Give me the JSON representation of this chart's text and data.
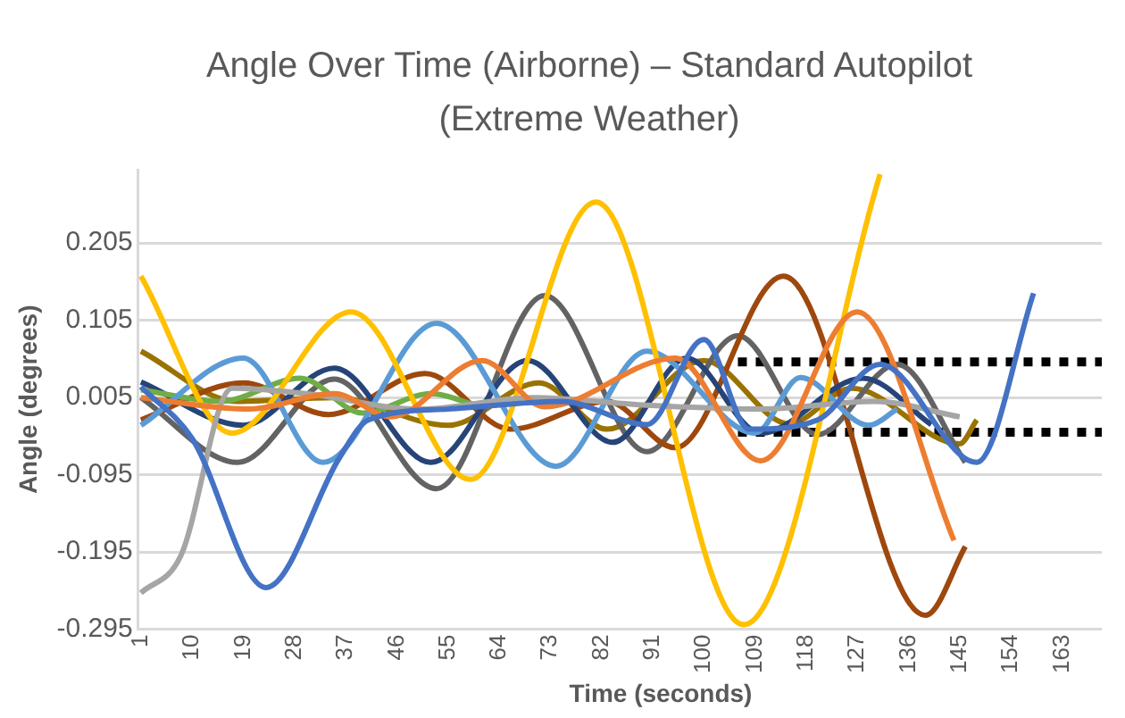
{
  "chart_data": {
    "type": "line",
    "title": "Angle Over Time (Airborne) – Standard Autopilot (Extreme Weather)",
    "xlabel": "Time (seconds)",
    "ylabel": "Angle (degrees)",
    "xlim": [
      0.5,
      170
    ],
    "xticks": [
      1,
      10,
      19,
      28,
      37,
      46,
      55,
      64,
      73,
      82,
      91,
      100,
      109,
      118,
      127,
      136,
      145,
      154,
      163
    ],
    "ylim": [
      -0.295,
      0.3
    ],
    "yticks": [
      -0.295,
      -0.195,
      -0.095,
      0.005,
      0.105,
      0.205
    ],
    "grid": "y",
    "legend": false,
    "marker": "none",
    "line_style": "solid",
    "series": [
      {
        "color": "#4472c4",
        "x": [
          1,
          10,
          23,
          36,
          41,
          55,
          75,
          90,
          100,
          108,
          120,
          131,
          148,
          158
        ],
        "values": [
          0.019,
          -0.048,
          -0.241,
          -0.072,
          -0.024,
          -0.01,
          0.0,
          -0.03,
          0.08,
          -0.036,
          -0.024,
          0.048,
          -0.079,
          0.14
        ]
      },
      {
        "color": "#ed7d31",
        "x": [
          1,
          20,
          35,
          45,
          61,
          72,
          95,
          110,
          127,
          144
        ],
        "values": [
          0.005,
          -0.01,
          0.01,
          -0.02,
          0.053,
          -0.007,
          0.056,
          -0.077,
          0.116,
          -0.18
        ]
      },
      {
        "color": "#a5a5a5",
        "x": [
          1,
          8,
          17,
          30,
          50,
          70,
          90,
          110,
          130,
          145
        ],
        "values": [
          -0.248,
          -0.2,
          0.017,
          0.01,
          -0.01,
          0.005,
          -0.005,
          -0.01,
          0.0,
          -0.02
        ]
      },
      {
        "color": "#ffc000",
        "x": [
          1,
          17,
          38,
          59,
          81,
          107,
          131
        ],
        "values": [
          0.162,
          -0.041,
          0.116,
          -0.101,
          0.258,
          -0.289,
          0.294
        ]
      },
      {
        "color": "#5b9bd5",
        "x": [
          1,
          19,
          33,
          53,
          74,
          90,
          109,
          117,
          129,
          134
        ],
        "values": [
          -0.031,
          0.056,
          -0.079,
          0.101,
          -0.084,
          0.065,
          -0.041,
          0.031,
          -0.031,
          -0.01
        ]
      },
      {
        "color": "#70ad47",
        "x": [
          1,
          15,
          29,
          40,
          52,
          60
        ],
        "values": [
          0.015,
          0.0,
          0.03,
          -0.015,
          0.01,
          -0.005
        ]
      },
      {
        "color": "#264478",
        "x": [
          1,
          19,
          35,
          52,
          69,
          84,
          97,
          110,
          128,
          140
        ],
        "values": [
          0.025,
          -0.031,
          0.043,
          -0.079,
          0.053,
          -0.053,
          0.056,
          -0.041,
          0.03,
          -0.03
        ]
      },
      {
        "color": "#9e480e",
        "x": [
          1,
          19,
          34,
          51,
          66,
          83,
          95,
          114,
          139,
          146
        ],
        "values": [
          -0.024,
          0.024,
          -0.017,
          0.036,
          -0.036,
          0.0,
          -0.06,
          0.162,
          -0.277,
          -0.188
        ]
      },
      {
        "color": "#636363",
        "x": [
          1,
          18,
          35,
          53,
          72,
          90,
          106,
          120,
          134,
          146
        ],
        "values": [
          0.005,
          -0.079,
          0.029,
          -0.113,
          0.137,
          -0.065,
          0.085,
          -0.043,
          0.048,
          -0.079
        ]
      },
      {
        "color": "#997300",
        "x": [
          1,
          18,
          35,
          55,
          71,
          83,
          100,
          115,
          126,
          145,
          148
        ],
        "values": [
          0.065,
          0.0,
          0.005,
          -0.031,
          0.024,
          -0.036,
          0.053,
          -0.029,
          0.017,
          -0.055,
          -0.024
        ]
      },
      {
        "color": "#000000",
        "line_style": "dotted",
        "x": [
          106,
          170
        ],
        "values": [
          0.051,
          0.051
        ]
      },
      {
        "color": "#000000",
        "line_style": "dotted",
        "x": [
          106,
          170
        ],
        "values": [
          -0.04,
          -0.04
        ]
      }
    ]
  }
}
